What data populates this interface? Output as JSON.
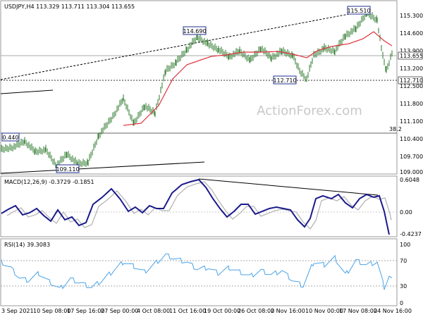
{
  "colors": {
    "candles": "#2c7a2c",
    "ma": "#e0303a",
    "macd": "#1a1a8c",
    "signal": "#b0b0b0",
    "rsi": "#4aa3e8",
    "trendline": "#000000",
    "watermark": "#c8c8c8"
  },
  "main_panel": {
    "header": "USDJPY,H4  113.329 113.711 113.304 113.655",
    "watermark": "ActionForex.com",
    "current_price": "113.655",
    "fib_label": "38.2",
    "price_scale": [
      "115.300",
      "114.600",
      "113.900",
      "113.200",
      "112.500",
      "111.800",
      "111.100",
      "110.400",
      "109.700",
      "109.000"
    ],
    "annotations": {
      "a1": "115.510",
      "a2": "114.690",
      "a3": "112.710",
      "a4": "109.110",
      "a5": "0.440"
    },
    "level_tags": {
      "support": "112.710"
    }
  },
  "macd_panel": {
    "header": "MACD(12,26,9) -0.3729 -0.1851",
    "scale": [
      "0.6048",
      "0.00",
      "-0.4237"
    ]
  },
  "rsi_panel": {
    "header": "RSI(14) 39.3083",
    "scale": [
      "100",
      "70",
      "30",
      "0"
    ]
  },
  "time_axis": [
    "3 Sep 2021",
    "10 Sep 08:00",
    "17 Sep 16:00",
    "27 Sep 00:00",
    "4 Oct 08:00",
    "11 Oct 16:00",
    "19 Oct 00:00",
    "26 Oct 08:00",
    "2 Nov 16:00",
    "10 Nov 00:00",
    "17 Nov 08:00",
    "24 Nov 16:00"
  ]
}
